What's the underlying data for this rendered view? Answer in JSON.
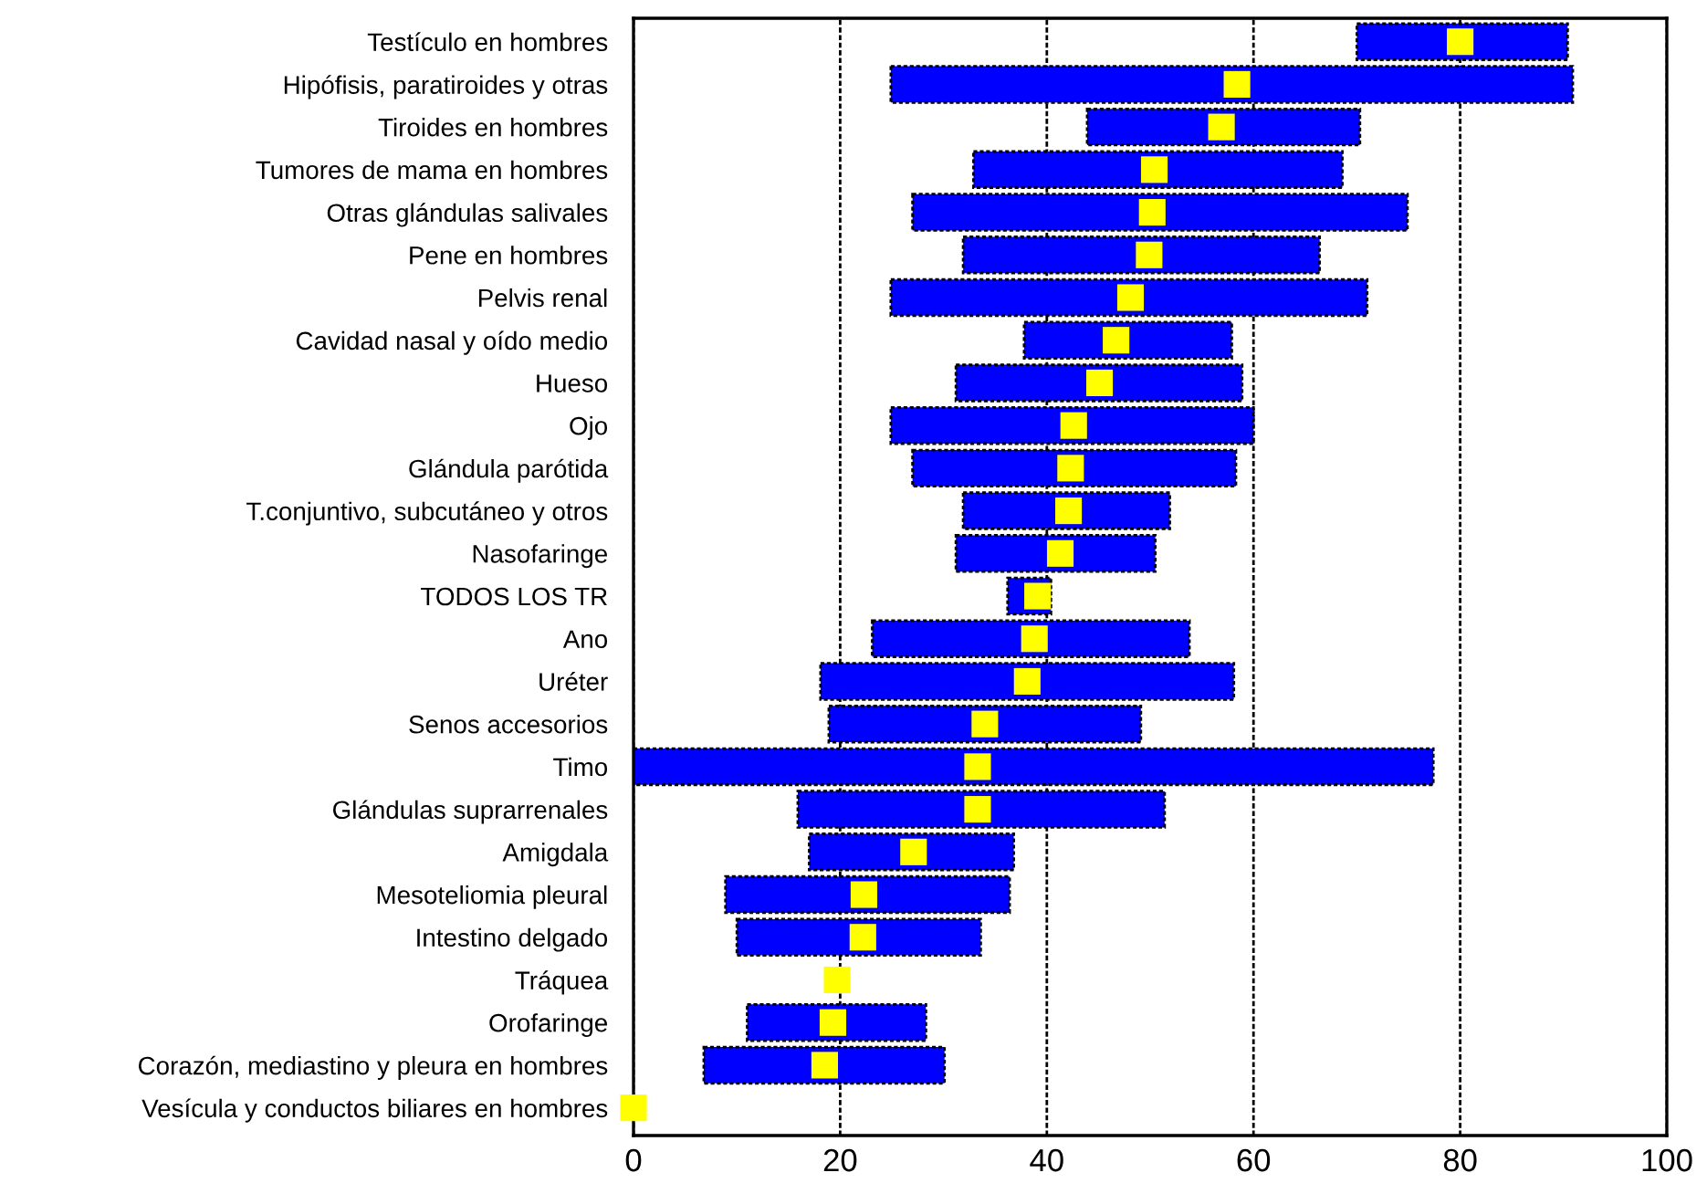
{
  "chart_data": {
    "type": "bar",
    "orientation": "horizontal",
    "categories": [
      "Testículo en hombres",
      "Hipófisis, paratiroides y otras",
      "Tiroides en hombres",
      "Tumores de mama en hombres",
      "Otras glándulas salivales",
      "Pene en hombres",
      "Pelvis renal",
      "Cavidad nasal y oído medio",
      "Hueso",
      "Ojo",
      "Glándula parótida",
      "T.conjuntivo, subcutáneo y otros",
      "Nasofaringe",
      "TODOS LOS TR",
      "Ano",
      "Uréter",
      "Senos accesorios",
      "Timo",
      "Glándulas suprarrenales",
      "Amigdala",
      "Mesoteliomia pleural",
      "Intestino delgado",
      "Tráquea",
      "Orofaringe",
      "Corazón, mediastino y pleura en hombres",
      "Vesícula y conductos biliares en hombres"
    ],
    "series": [
      {
        "color": "#0000ff",
        "base": [
          70.0,
          24.9,
          43.9,
          32.9,
          27.0,
          31.9,
          24.9,
          37.8,
          31.2,
          24.9,
          27.0,
          31.9,
          31.2,
          36.2,
          23.1,
          18.1,
          18.9,
          0.0,
          15.9,
          17.0,
          8.9,
          10.0,
          null,
          11.0,
          6.8,
          null
        ],
        "values": [
          20.4,
          66.0,
          26.4,
          35.7,
          47.9,
          34.5,
          46.1,
          20.1,
          27.7,
          35.1,
          31.3,
          20.0,
          19.3,
          4.2,
          30.7,
          40.0,
          30.2,
          77.4,
          35.5,
          19.8,
          27.5,
          23.6,
          null,
          17.3,
          23.3,
          null
        ]
      },
      {
        "type": "scatter",
        "color": "#ffff00",
        "marker": "square",
        "values": [
          80.0,
          58.4,
          56.9,
          50.4,
          50.2,
          49.9,
          48.1,
          46.7,
          45.1,
          42.6,
          42.3,
          42.1,
          41.3,
          39.1,
          38.8,
          38.1,
          34.0,
          33.3,
          33.3,
          27.1,
          22.3,
          22.2,
          19.7,
          19.3,
          18.5,
          0.0
        ]
      }
    ],
    "xlim": [
      0,
      100
    ],
    "xticks": [
      0,
      20,
      40,
      60,
      80,
      100
    ],
    "grid": "x",
    "legend": false
  }
}
